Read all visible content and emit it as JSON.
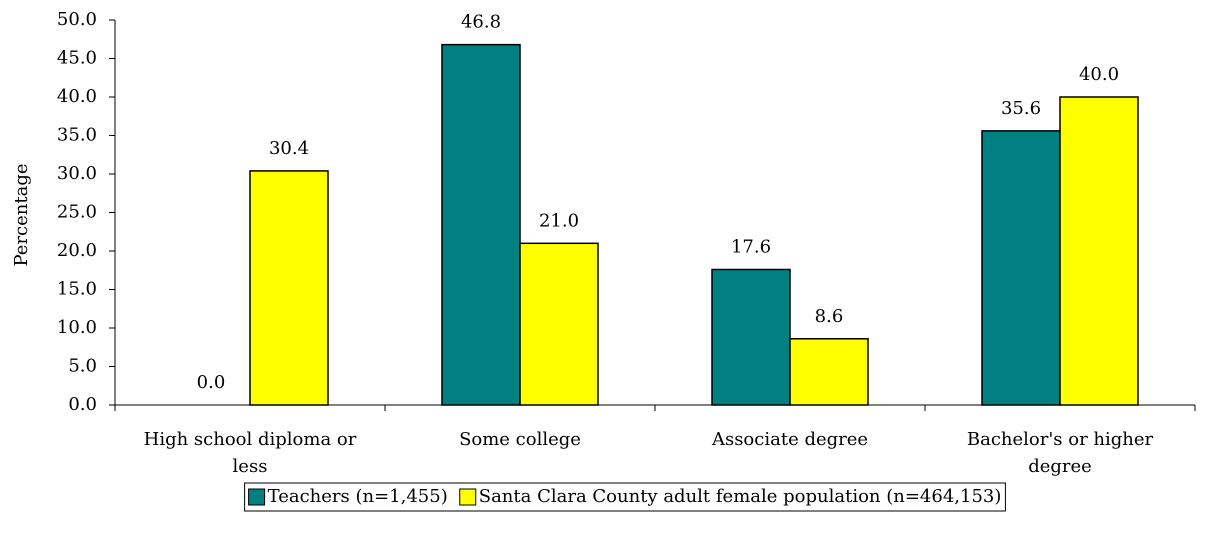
{
  "chart_data": {
    "type": "bar",
    "y_label": "Percentage",
    "categories": [
      "High school diploma or less",
      "Some college",
      "Associate degree",
      "Bachelor's or higher degree"
    ],
    "series": [
      {
        "name": "Teachers (n=1,455)",
        "color": "#008080",
        "values": [
          0,
          46.8,
          17.6,
          35.6
        ],
        "value_labels": [
          "0.0",
          "46.8",
          "17.6",
          "35.6"
        ]
      },
      {
        "name": "Santa Clara County adult female population (n=464,153)",
        "color": "#ffff00",
        "values": [
          30.4,
          21,
          8.6,
          40
        ],
        "value_labels": [
          "30.4",
          "21.0",
          "8.6",
          "40.0"
        ]
      }
    ],
    "ylim": [
      0,
      50
    ],
    "yticks": [
      {
        "value": 0,
        "label": "0.0"
      },
      {
        "value": 5,
        "label": "5.0"
      },
      {
        "value": 10,
        "label": "10.0"
      },
      {
        "value": 15,
        "label": "15.0"
      },
      {
        "value": 20,
        "label": "20.0"
      },
      {
        "value": 25,
        "label": "25.0"
      },
      {
        "value": 30,
        "label": "30.0"
      },
      {
        "value": 35,
        "label": "35.0"
      },
      {
        "value": 40,
        "label": "40.0"
      },
      {
        "value": 45,
        "label": "45.0"
      },
      {
        "value": 50,
        "label": "50.0"
      }
    ],
    "grid": false,
    "legend": "bottom"
  }
}
